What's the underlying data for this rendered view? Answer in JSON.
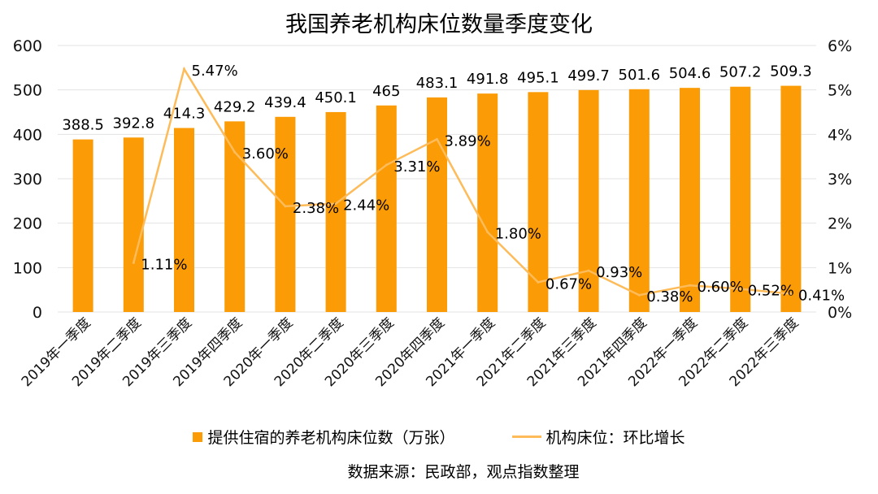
{
  "chart_data": {
    "type": "bar+line",
    "title": "我国养老机构床位数量季度变化",
    "categories": [
      "2019年一季度",
      "2019年二季度",
      "2019年三季度",
      "2019年四季度",
      "2020年一季度",
      "2020年二季度",
      "2020年三季度",
      "2020年四季度",
      "2021年一季度",
      "2021年二季度",
      "2021年三季度",
      "2021年四季度",
      "2022年一季度",
      "2022年二季度",
      "2022年三季度"
    ],
    "series": [
      {
        "name": "提供住宿的养老机构床位数（万张）",
        "type": "bar",
        "axis": "left",
        "color": "#fb9b05",
        "values": [
          388.5,
          392.8,
          414.3,
          429.2,
          439.4,
          450.1,
          465,
          483.1,
          491.8,
          495.1,
          499.7,
          501.6,
          504.6,
          507.2,
          509.3
        ],
        "labels": [
          "388.5",
          "392.8",
          "414.3",
          "429.2",
          "439.4",
          "450.1",
          "465",
          "483.1",
          "491.8",
          "495.1",
          "499.7",
          "501.6",
          "504.6",
          "507.2",
          "509.3"
        ]
      },
      {
        "name": "机构床位：环比增长",
        "type": "line",
        "axis": "right",
        "color": "#fdbb5a",
        "values": [
          null,
          1.11,
          5.47,
          3.6,
          2.38,
          2.44,
          3.31,
          3.89,
          1.8,
          0.67,
          0.93,
          0.38,
          0.6,
          0.52,
          0.41
        ],
        "labels": [
          null,
          "1.11%",
          "5.47%",
          "3.60%",
          "2.38%",
          "2.44%",
          "3.31%",
          "3.89%",
          "1.80%",
          "0.67%",
          "0.93%",
          "0.38%",
          "0.60%",
          "0.52%",
          "0.41%"
        ]
      }
    ],
    "ylim": [
      0,
      600
    ],
    "yticks": [
      "0",
      "100",
      "200",
      "300",
      "400",
      "500",
      "600"
    ],
    "y2lim": [
      0,
      6
    ],
    "y2ticks": [
      "0%",
      "1%",
      "2%",
      "3%",
      "4%",
      "5%",
      "6%"
    ],
    "grid": true,
    "legend": "bottom"
  },
  "source": "数据来源：民政部，观点指数整理"
}
